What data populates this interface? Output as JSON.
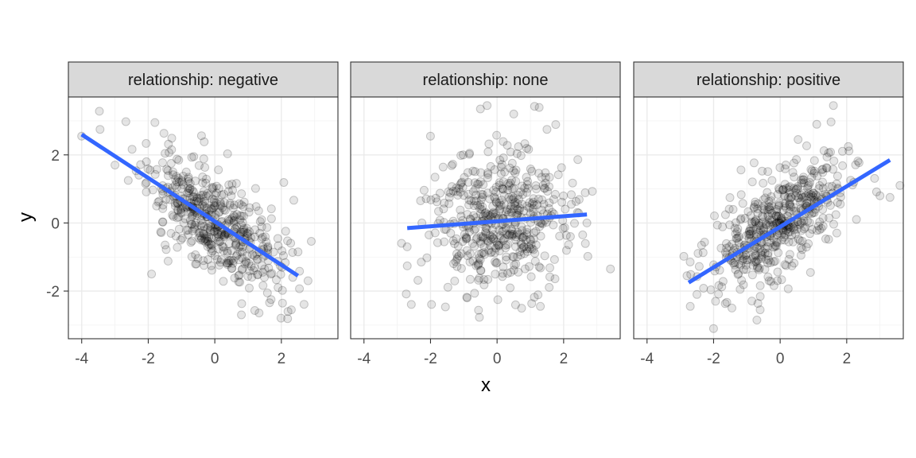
{
  "chart_data": {
    "type": "scatter",
    "xlabel": "x",
    "ylabel": "y",
    "xlim": [
      -4.4,
      3.7
    ],
    "ylim": [
      -3.4,
      3.7
    ],
    "x_ticks": [
      -4,
      -2,
      0,
      2
    ],
    "x_tick_labels": [
      "-4",
      "-2",
      "0",
      "2"
    ],
    "y_ticks": [
      -2,
      0,
      2
    ],
    "y_tick_labels": [
      "-2",
      "0",
      "2"
    ],
    "grid": true,
    "fit_color": "#3366ff",
    "point_color": "#000000",
    "point_alpha": 0.1,
    "facets": [
      {
        "label": "relationship: negative",
        "fit": {
          "x": [
            -4.0,
            2.5
          ],
          "y": [
            2.6,
            -1.55
          ]
        },
        "points": {
          "count": 500,
          "x_mean": 0.0,
          "x_sd": 1.0,
          "slope": -0.64,
          "intercept": 0.03,
          "resid_sd": 0.72,
          "seed": 11,
          "outliers": [
            [
              -4.0,
              2.55
            ],
            [
              -3.45,
              2.75
            ],
            [
              -3.0,
              1.7
            ],
            [
              -2.6,
              1.25
            ],
            [
              -1.9,
              -1.5
            ],
            [
              -1.8,
              2.95
            ],
            [
              0.8,
              -2.7
            ],
            [
              2.3,
              -2.55
            ],
            [
              2.2,
              -2.6
            ],
            [
              2.5,
              -0.85
            ]
          ]
        }
      },
      {
        "label": "relationship: none",
        "fit": {
          "x": [
            -2.7,
            2.7
          ],
          "y": [
            -0.15,
            0.25
          ]
        },
        "points": {
          "count": 500,
          "x_mean": 0.0,
          "x_sd": 1.0,
          "slope": 0.07,
          "intercept": 0.03,
          "resid_sd": 1.0,
          "seed": 23,
          "outliers": [
            [
              -0.5,
              3.35
            ],
            [
              -0.3,
              3.45
            ],
            [
              0.5,
              3.2
            ],
            [
              -2.7,
              -0.7
            ],
            [
              2.7,
              0.0
            ],
            [
              1.3,
              -2.45
            ],
            [
              -0.9,
              -2.2
            ],
            [
              -2.0,
              2.55
            ],
            [
              1.5,
              2.75
            ]
          ]
        }
      },
      {
        "label": "relationship: positive",
        "fit": {
          "x": [
            -2.75,
            3.3
          ],
          "y": [
            -1.75,
            1.85
          ]
        },
        "points": {
          "count": 500,
          "x_mean": 0.0,
          "x_sd": 1.0,
          "slope": 0.6,
          "intercept": 0.03,
          "resid_sd": 0.72,
          "seed": 37,
          "outliers": [
            [
              -2.7,
              -2.45
            ],
            [
              -2.0,
              -3.1
            ],
            [
              -2.5,
              -2.1
            ],
            [
              1.6,
              3.45
            ],
            [
              1.1,
              2.9
            ],
            [
              3.6,
              1.1
            ],
            [
              -2.8,
              -1.55
            ],
            [
              -0.6,
              -2.55
            ],
            [
              -0.7,
              -2.85
            ],
            [
              3.0,
              0.8
            ],
            [
              3.3,
              0.75
            ]
          ]
        }
      }
    ]
  }
}
